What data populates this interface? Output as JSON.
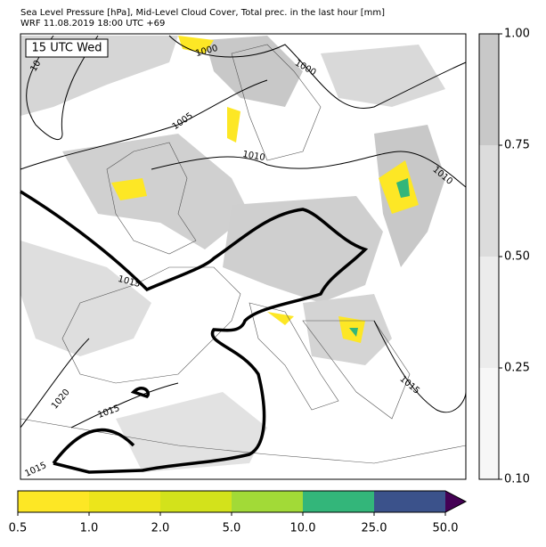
{
  "header": {
    "line1": "Sea Level Pressure [hPa], Mid-Level Cloud Cover, Total prec. in the last hour [mm]",
    "line2": "WRF 11.08.2019 18:00 UTC +69"
  },
  "map": {
    "time_label": "15 UTC Wed",
    "contour_labels": [
      1000,
      1000,
      1005,
      1010,
      1010,
      1015,
      1020,
      1015,
      1015,
      1015,
      10
    ]
  },
  "cloud_colorbar": {
    "colors": [
      "#f7f7f7",
      "#ececec",
      "#dcdcdc",
      "#c8c8c8"
    ],
    "ticks": [
      {
        "value": 0.1,
        "label": "0.10"
      },
      {
        "value": 0.25,
        "label": "0.25"
      },
      {
        "value": 0.5,
        "label": "0.50"
      },
      {
        "value": 0.75,
        "label": "0.75"
      },
      {
        "value": 1,
        "label": "1.00"
      }
    ]
  },
  "precip_colorbar": {
    "colors": [
      "#fde725",
      "#ece51b",
      "#d3e21b",
      "#a2da37",
      "#33b67a",
      "#3b528b",
      "#440154"
    ],
    "ticks": [
      0.5,
      {
        "value": 1,
        "label": "1.0"
      },
      {
        "value": 2,
        "label": "2.0"
      },
      {
        "value": 5,
        "label": "5.0"
      },
      {
        "value": 10,
        "label": "10.0"
      },
      {
        "value": 25,
        "label": "25.0"
      },
      {
        "value": 50,
        "label": "50.0"
      }
    ]
  }
}
